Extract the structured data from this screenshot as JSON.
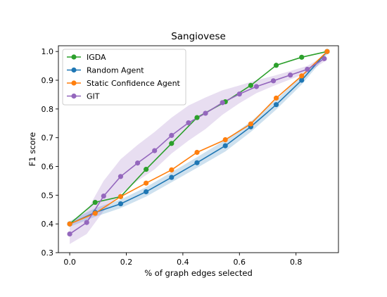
{
  "chart_data": {
    "type": "line",
    "title": "Sangiovese",
    "xlabel": "% of graph edges selected",
    "ylabel": "F1 score",
    "xlim": [
      -0.04,
      0.95
    ],
    "ylim": [
      0.3,
      1.02
    ],
    "xticks": [
      0.0,
      0.2,
      0.4,
      0.6,
      0.8
    ],
    "xtick_labels": [
      "0.0",
      "0.2",
      "0.4",
      "0.6",
      "0.8"
    ],
    "yticks": [
      0.3,
      0.4,
      0.5,
      0.6,
      0.7,
      0.8,
      0.9,
      1.0
    ],
    "ytick_labels": [
      "0.3",
      "0.4",
      "0.5",
      "0.6",
      "0.7",
      "0.8",
      "0.9",
      "1.0"
    ],
    "grid": false,
    "legend_position": "top-left",
    "series": [
      {
        "name": "IGDA",
        "color": "#2ca02c",
        "x": [
          0.0,
          0.09,
          0.18,
          0.27,
          0.36,
          0.45,
          0.55,
          0.64,
          0.73,
          0.82,
          0.91
        ],
        "y": [
          0.4,
          0.475,
          0.495,
          0.59,
          0.68,
          0.77,
          0.825,
          0.882,
          0.952,
          0.98,
          1.0
        ]
      },
      {
        "name": "Random Agent",
        "color": "#1f77b4",
        "x": [
          0.0,
          0.09,
          0.18,
          0.27,
          0.36,
          0.45,
          0.55,
          0.64,
          0.73,
          0.82,
          0.91
        ],
        "y": [
          0.4,
          0.44,
          0.47,
          0.512,
          0.562,
          0.613,
          0.672,
          0.738,
          0.815,
          0.9,
          1.0
        ],
        "band_lower": [
          0.39,
          0.425,
          0.455,
          0.495,
          0.545,
          0.595,
          0.652,
          0.72,
          0.798,
          0.885,
          0.99
        ],
        "band_upper": [
          0.41,
          0.455,
          0.485,
          0.528,
          0.58,
          0.632,
          0.692,
          0.756,
          0.832,
          0.915,
          1.0
        ]
      },
      {
        "name": "Static Confidence Agent",
        "color": "#ff7f0e",
        "x": [
          0.0,
          0.09,
          0.18,
          0.27,
          0.36,
          0.45,
          0.55,
          0.64,
          0.73,
          0.82,
          0.91
        ],
        "y": [
          0.4,
          0.437,
          0.495,
          0.542,
          0.588,
          0.649,
          0.693,
          0.748,
          0.838,
          0.915,
          1.0
        ]
      },
      {
        "name": "GIT",
        "color": "#9467bd",
        "x": [
          0.0,
          0.06,
          0.12,
          0.18,
          0.24,
          0.3,
          0.36,
          0.42,
          0.48,
          0.54,
          0.6,
          0.66,
          0.72,
          0.78,
          0.84,
          0.9
        ],
        "y": [
          0.365,
          0.405,
          0.497,
          0.565,
          0.612,
          0.655,
          0.708,
          0.752,
          0.785,
          0.822,
          0.852,
          0.878,
          0.898,
          0.918,
          0.938,
          0.975
        ],
        "band_lower": [
          0.33,
          0.365,
          0.445,
          0.505,
          0.55,
          0.59,
          0.645,
          0.69,
          0.73,
          0.78,
          0.82,
          0.855,
          0.88,
          0.903,
          0.925,
          0.965
        ],
        "band_upper": [
          0.4,
          0.445,
          0.55,
          0.625,
          0.675,
          0.72,
          0.77,
          0.812,
          0.84,
          0.865,
          0.882,
          0.9,
          0.915,
          0.932,
          0.95,
          0.985
        ]
      }
    ]
  }
}
